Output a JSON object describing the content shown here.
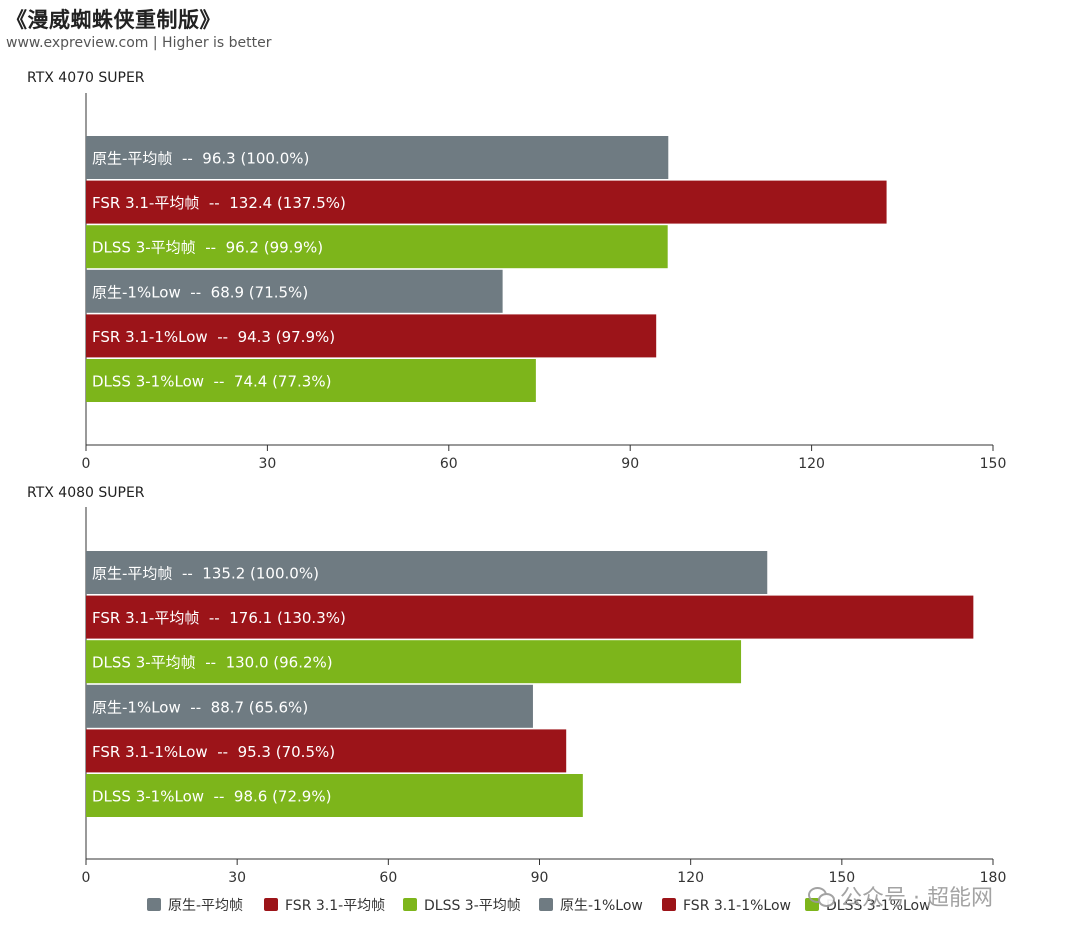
{
  "header": {
    "title": "《漫威蜘蛛侠重制版》",
    "subtitle": "www.expreview.com | Higher is better"
  },
  "colors": {
    "native": "#6f7b82",
    "fsr": "#9c1419",
    "dlss": "#7db51b"
  },
  "chart_data": [
    {
      "type": "bar",
      "orientation": "horizontal",
      "title": "RTX 4070 SUPER",
      "xlim": [
        0,
        150
      ],
      "xticks": [
        0,
        30,
        60,
        90,
        120,
        150
      ],
      "bars": [
        {
          "label": "原生-平均帧  --  96.3 (100.0%)",
          "value": 96.3,
          "group": "native"
        },
        {
          "label": "FSR 3.1-平均帧  --  132.4 (137.5%)",
          "value": 132.4,
          "group": "fsr"
        },
        {
          "label": "DLSS 3-平均帧  --  96.2 (99.9%)",
          "value": 96.2,
          "group": "dlss"
        },
        {
          "label": "原生-1%Low  --  68.9 (71.5%)",
          "value": 68.9,
          "group": "native"
        },
        {
          "label": "FSR 3.1-1%Low  --  94.3 (97.9%)",
          "value": 94.3,
          "group": "fsr"
        },
        {
          "label": "DLSS 3-1%Low  --  74.4 (77.3%)",
          "value": 74.4,
          "group": "dlss"
        }
      ]
    },
    {
      "type": "bar",
      "orientation": "horizontal",
      "title": "RTX 4080 SUPER",
      "xlim": [
        0,
        180
      ],
      "xticks": [
        0,
        30,
        60,
        90,
        120,
        150,
        180
      ],
      "bars": [
        {
          "label": "原生-平均帧  --  135.2 (100.0%)",
          "value": 135.2,
          "group": "native"
        },
        {
          "label": "FSR 3.1-平均帧  --  176.1 (130.3%)",
          "value": 176.1,
          "group": "fsr"
        },
        {
          "label": "DLSS 3-平均帧  --  130.0 (96.2%)",
          "value": 130.0,
          "group": "dlss"
        },
        {
          "label": "原生-1%Low  --  88.7 (65.6%)",
          "value": 88.7,
          "group": "native"
        },
        {
          "label": "FSR 3.1-1%Low  --  95.3 (70.5%)",
          "value": 95.3,
          "group": "fsr"
        },
        {
          "label": "DLSS 3-1%Low  --  98.6 (72.9%)",
          "value": 98.6,
          "group": "dlss"
        }
      ]
    }
  ],
  "legend": {
    "placement": "bottom",
    "items": [
      {
        "label": "原生-平均帧",
        "group": "native"
      },
      {
        "label": "FSR 3.1-平均帧",
        "group": "fsr"
      },
      {
        "label": "DLSS 3-平均帧",
        "group": "dlss"
      },
      {
        "label": "原生-1%Low",
        "group": "native"
      },
      {
        "label": "FSR 3.1-1%Low",
        "group": "fsr"
      },
      {
        "label": "DLSS 3-1%Low",
        "group": "dlss"
      }
    ]
  },
  "watermark": {
    "icon": "wechat-icon",
    "text": "公众号 · 超能网"
  }
}
